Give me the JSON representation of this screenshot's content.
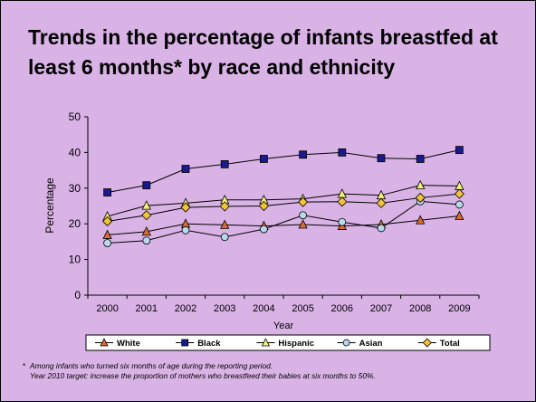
{
  "slide": {
    "title": "Trends in the percentage of infants breastfed at least 6 months* by race and ethnicity",
    "footnote_marker": "*",
    "footnote_line1": "Among infants who turned six months of age during the reporting period.",
    "footnote_line2": "Year 2010 target: increase the proportion of mothers who breastfeed their babies at six months to 50%.",
    "background_color": "#d9b3e6"
  },
  "chart_data": {
    "type": "line",
    "title": "",
    "xlabel": "Year",
    "ylabel": "Percentage",
    "ylim": [
      0,
      50
    ],
    "yticks": [
      0,
      10,
      20,
      30,
      40,
      50
    ],
    "grid": false,
    "legend_position": "bottom",
    "categories": [
      "2000",
      "2001",
      "2002",
      "2003",
      "2004",
      "2005",
      "2006",
      "2007",
      "2008",
      "2009"
    ],
    "series": [
      {
        "name": "White",
        "marker": "triangle",
        "color": "#d86b2f",
        "values": [
          16.9,
          17.8,
          20.0,
          19.7,
          19.4,
          19.8,
          19.4,
          19.8,
          21.0,
          22.2
        ]
      },
      {
        "name": "Black",
        "marker": "square",
        "color": "#1a1a8c",
        "values": [
          28.8,
          30.8,
          35.4,
          36.7,
          38.2,
          39.4,
          40.0,
          38.4,
          38.2,
          40.7
        ]
      },
      {
        "name": "Hispanic",
        "marker": "triangle",
        "color": "#f2f277",
        "values": [
          22.1,
          25.1,
          25.8,
          26.7,
          26.7,
          27.0,
          28.4,
          28.0,
          30.8,
          30.6
        ]
      },
      {
        "name": "Asian",
        "marker": "circle",
        "color": "#b8d8ec",
        "values": [
          14.6,
          15.3,
          18.2,
          16.3,
          18.5,
          22.4,
          20.5,
          18.8,
          26.3,
          25.4
        ]
      },
      {
        "name": "Total",
        "marker": "diamond",
        "color": "#f2c23a",
        "values": [
          20.7,
          22.4,
          24.6,
          24.9,
          25.0,
          26.1,
          26.2,
          25.8,
          27.3,
          28.4
        ]
      }
    ]
  }
}
